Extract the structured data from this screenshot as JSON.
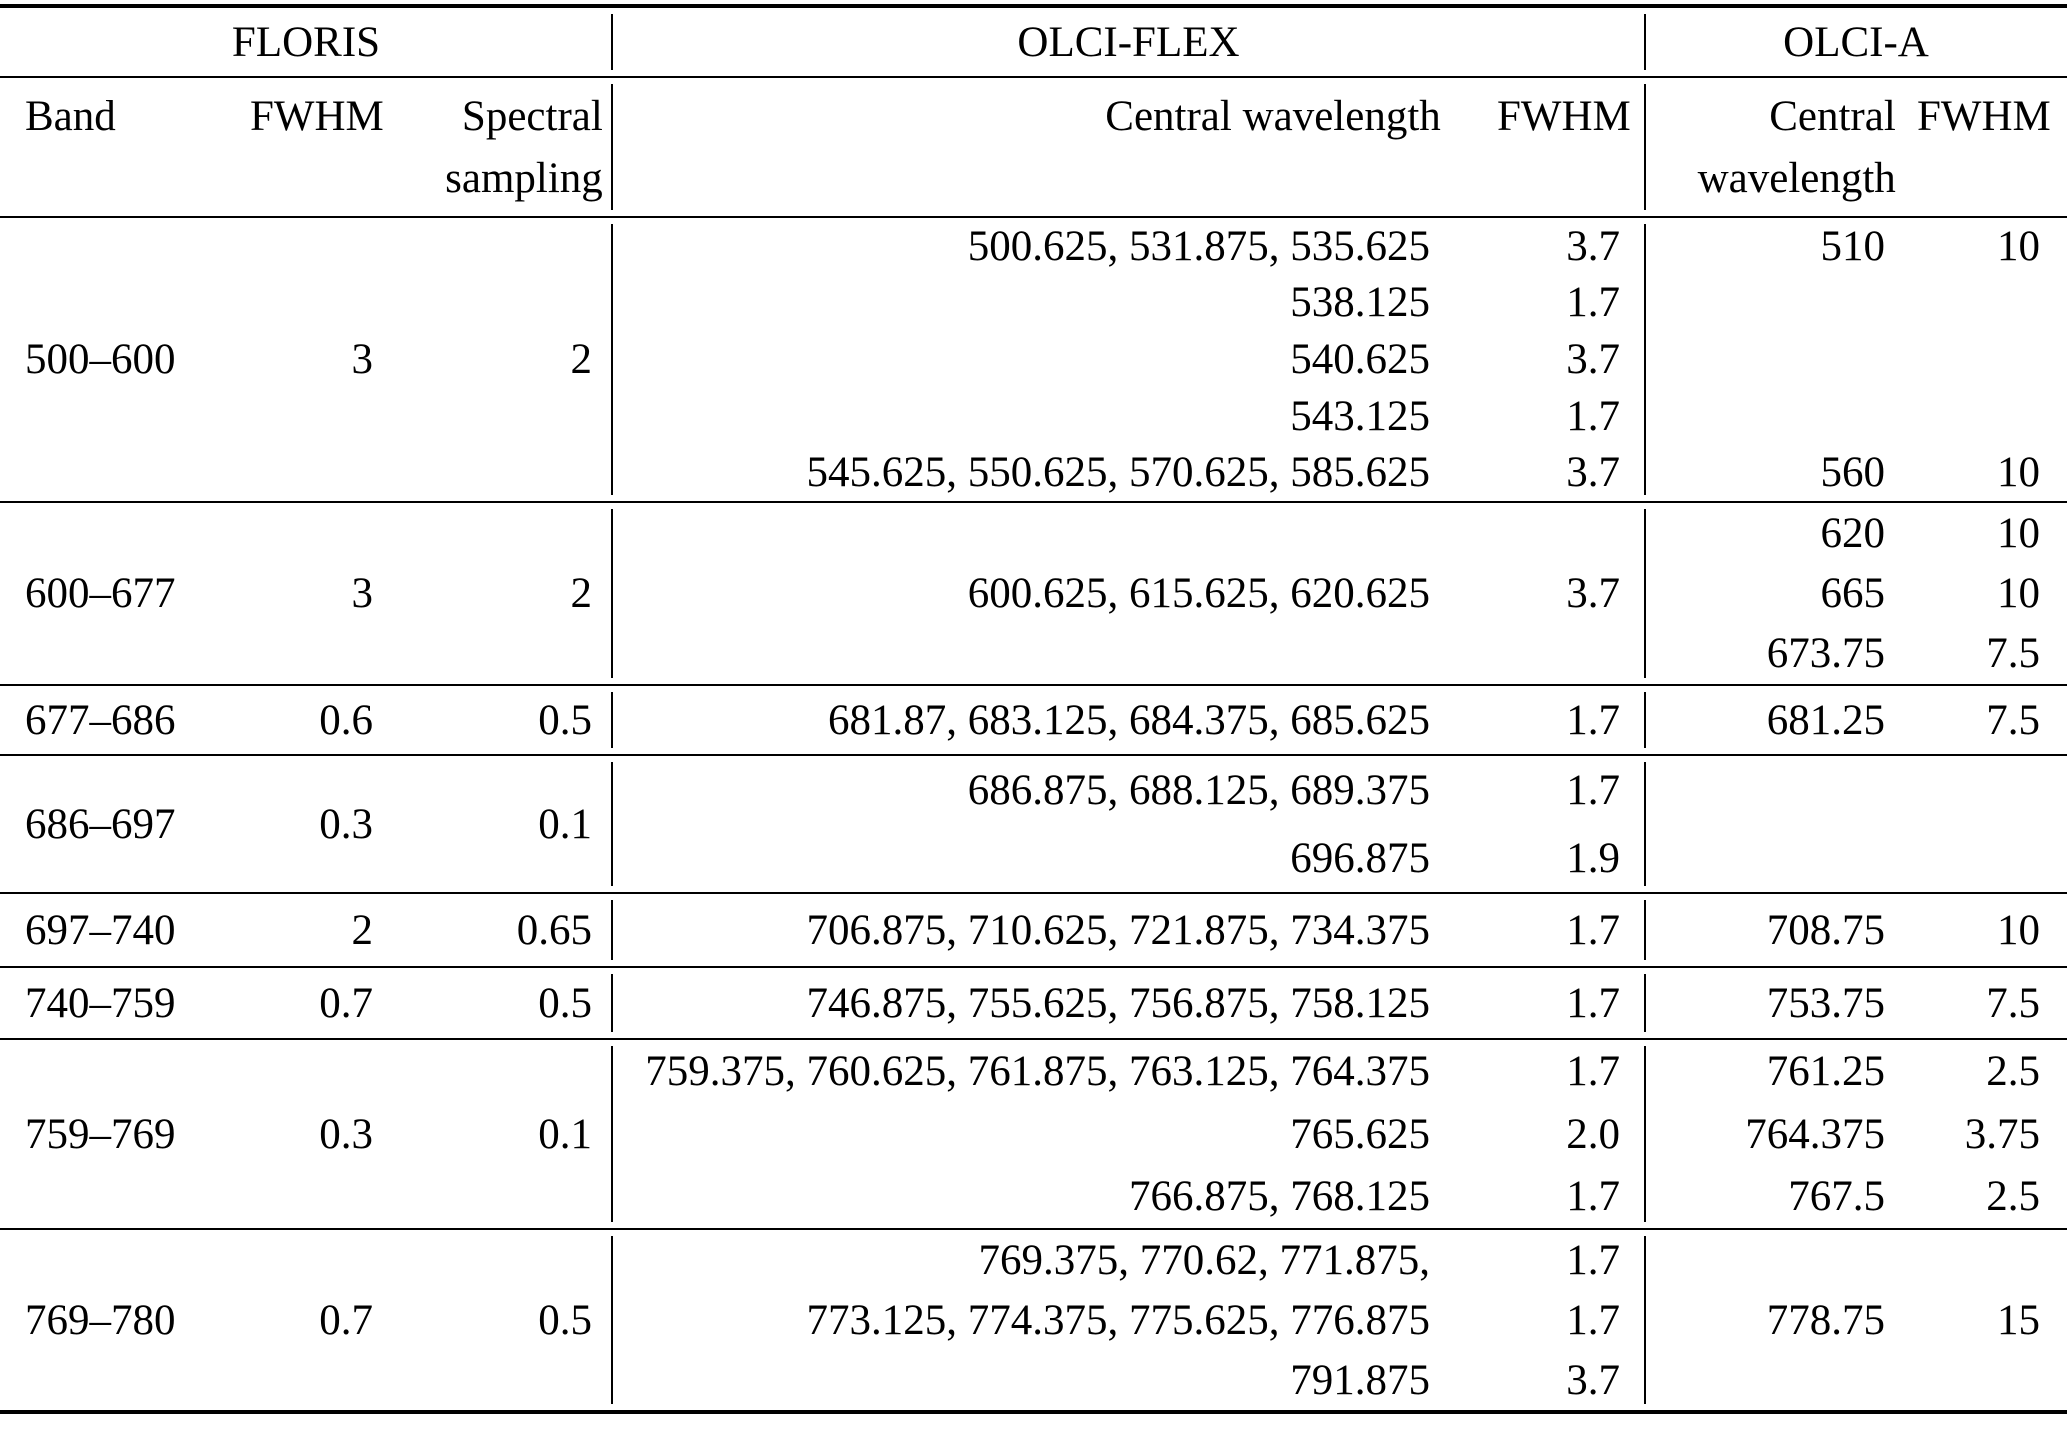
{
  "table": {
    "sections": {
      "floris": "FLORIS",
      "olci_flex": "OLCI-FLEX",
      "olci_a": "OLCI-A"
    },
    "columns": {
      "band": "Band",
      "floris_fwhm": "FWHM",
      "sampling": "Spectral sampling",
      "flex_wl": "Central wavelength",
      "flex_fwhm": "FWHM",
      "a_wl": "Central wavelength",
      "a_fwhm": "FWHM"
    },
    "groups": [
      {
        "floris": {
          "band": "500–600",
          "fwhm": "3",
          "sampling": "2"
        },
        "rows": [
          {
            "flex_wl": "500.625, 531.875, 535.625",
            "flex_fwhm": "3.7",
            "a_wl": "510",
            "a_fwhm": "10"
          },
          {
            "flex_wl": "538.125",
            "flex_fwhm": "1.7",
            "a_wl": "",
            "a_fwhm": ""
          },
          {
            "flex_wl": "540.625",
            "flex_fwhm": "3.7",
            "a_wl": "",
            "a_fwhm": ""
          },
          {
            "flex_wl": "543.125",
            "flex_fwhm": "1.7",
            "a_wl": "",
            "a_fwhm": ""
          },
          {
            "flex_wl": "545.625, 550.625, 570.625, 585.625",
            "flex_fwhm": "3.7",
            "a_wl": "560",
            "a_fwhm": "10"
          }
        ]
      },
      {
        "floris": {
          "band": "600–677",
          "fwhm": "3",
          "sampling": "2"
        },
        "rows": [
          {
            "flex_wl": "",
            "flex_fwhm": "",
            "a_wl": "620",
            "a_fwhm": "10"
          },
          {
            "flex_wl": "600.625, 615.625, 620.625",
            "flex_fwhm": "3.7",
            "a_wl": "665",
            "a_fwhm": "10"
          },
          {
            "flex_wl": "",
            "flex_fwhm": "",
            "a_wl": "673.75",
            "a_fwhm": "7.5"
          }
        ]
      },
      {
        "floris": {
          "band": "677–686",
          "fwhm": "0.6",
          "sampling": "0.5"
        },
        "rows": [
          {
            "flex_wl": "681.87, 683.125, 684.375, 685.625",
            "flex_fwhm": "1.7",
            "a_wl": "681.25",
            "a_fwhm": "7.5"
          }
        ]
      },
      {
        "floris": {
          "band": "686–697",
          "fwhm": "0.3",
          "sampling": "0.1"
        },
        "rows": [
          {
            "flex_wl": "686.875, 688.125, 689.375",
            "flex_fwhm": "1.7",
            "a_wl": "",
            "a_fwhm": ""
          },
          {
            "flex_wl": "696.875",
            "flex_fwhm": "1.9",
            "a_wl": "",
            "a_fwhm": ""
          }
        ]
      },
      {
        "floris": {
          "band": "697–740",
          "fwhm": "2",
          "sampling": "0.65"
        },
        "rows": [
          {
            "flex_wl": "706.875, 710.625, 721.875, 734.375",
            "flex_fwhm": "1.7",
            "a_wl": "708.75",
            "a_fwhm": "10"
          }
        ]
      },
      {
        "floris": {
          "band": "740–759",
          "fwhm": "0.7",
          "sampling": "0.5"
        },
        "rows": [
          {
            "flex_wl": "746.875, 755.625, 756.875, 758.125",
            "flex_fwhm": "1.7",
            "a_wl": "753.75",
            "a_fwhm": "7.5"
          }
        ]
      },
      {
        "floris": {
          "band": "759–769",
          "fwhm": "0.3",
          "sampling": "0.1"
        },
        "rows": [
          {
            "flex_wl": "759.375, 760.625, 761.875, 763.125, 764.375",
            "flex_fwhm": "1.7",
            "a_wl": "761.25",
            "a_fwhm": "2.5"
          },
          {
            "flex_wl": "765.625",
            "flex_fwhm": "2.0",
            "a_wl": "764.375",
            "a_fwhm": "3.75"
          },
          {
            "flex_wl": "766.875, 768.125",
            "flex_fwhm": "1.7",
            "a_wl": "767.5",
            "a_fwhm": "2.5"
          }
        ]
      },
      {
        "floris": {
          "band": "769–780",
          "fwhm": "0.7",
          "sampling": "0.5"
        },
        "rows": [
          {
            "flex_wl": "769.375, 770.62, 771.875,",
            "flex_fwhm": "1.7",
            "a_wl": "",
            "a_fwhm": ""
          },
          {
            "flex_wl": "773.125, 774.375, 775.625, 776.875",
            "flex_fwhm": "1.7",
            "a_wl": "778.75",
            "a_fwhm": "15"
          },
          {
            "flex_wl": "791.875",
            "flex_fwhm": "3.7",
            "a_wl": "",
            "a_fwhm": ""
          }
        ]
      }
    ]
  }
}
